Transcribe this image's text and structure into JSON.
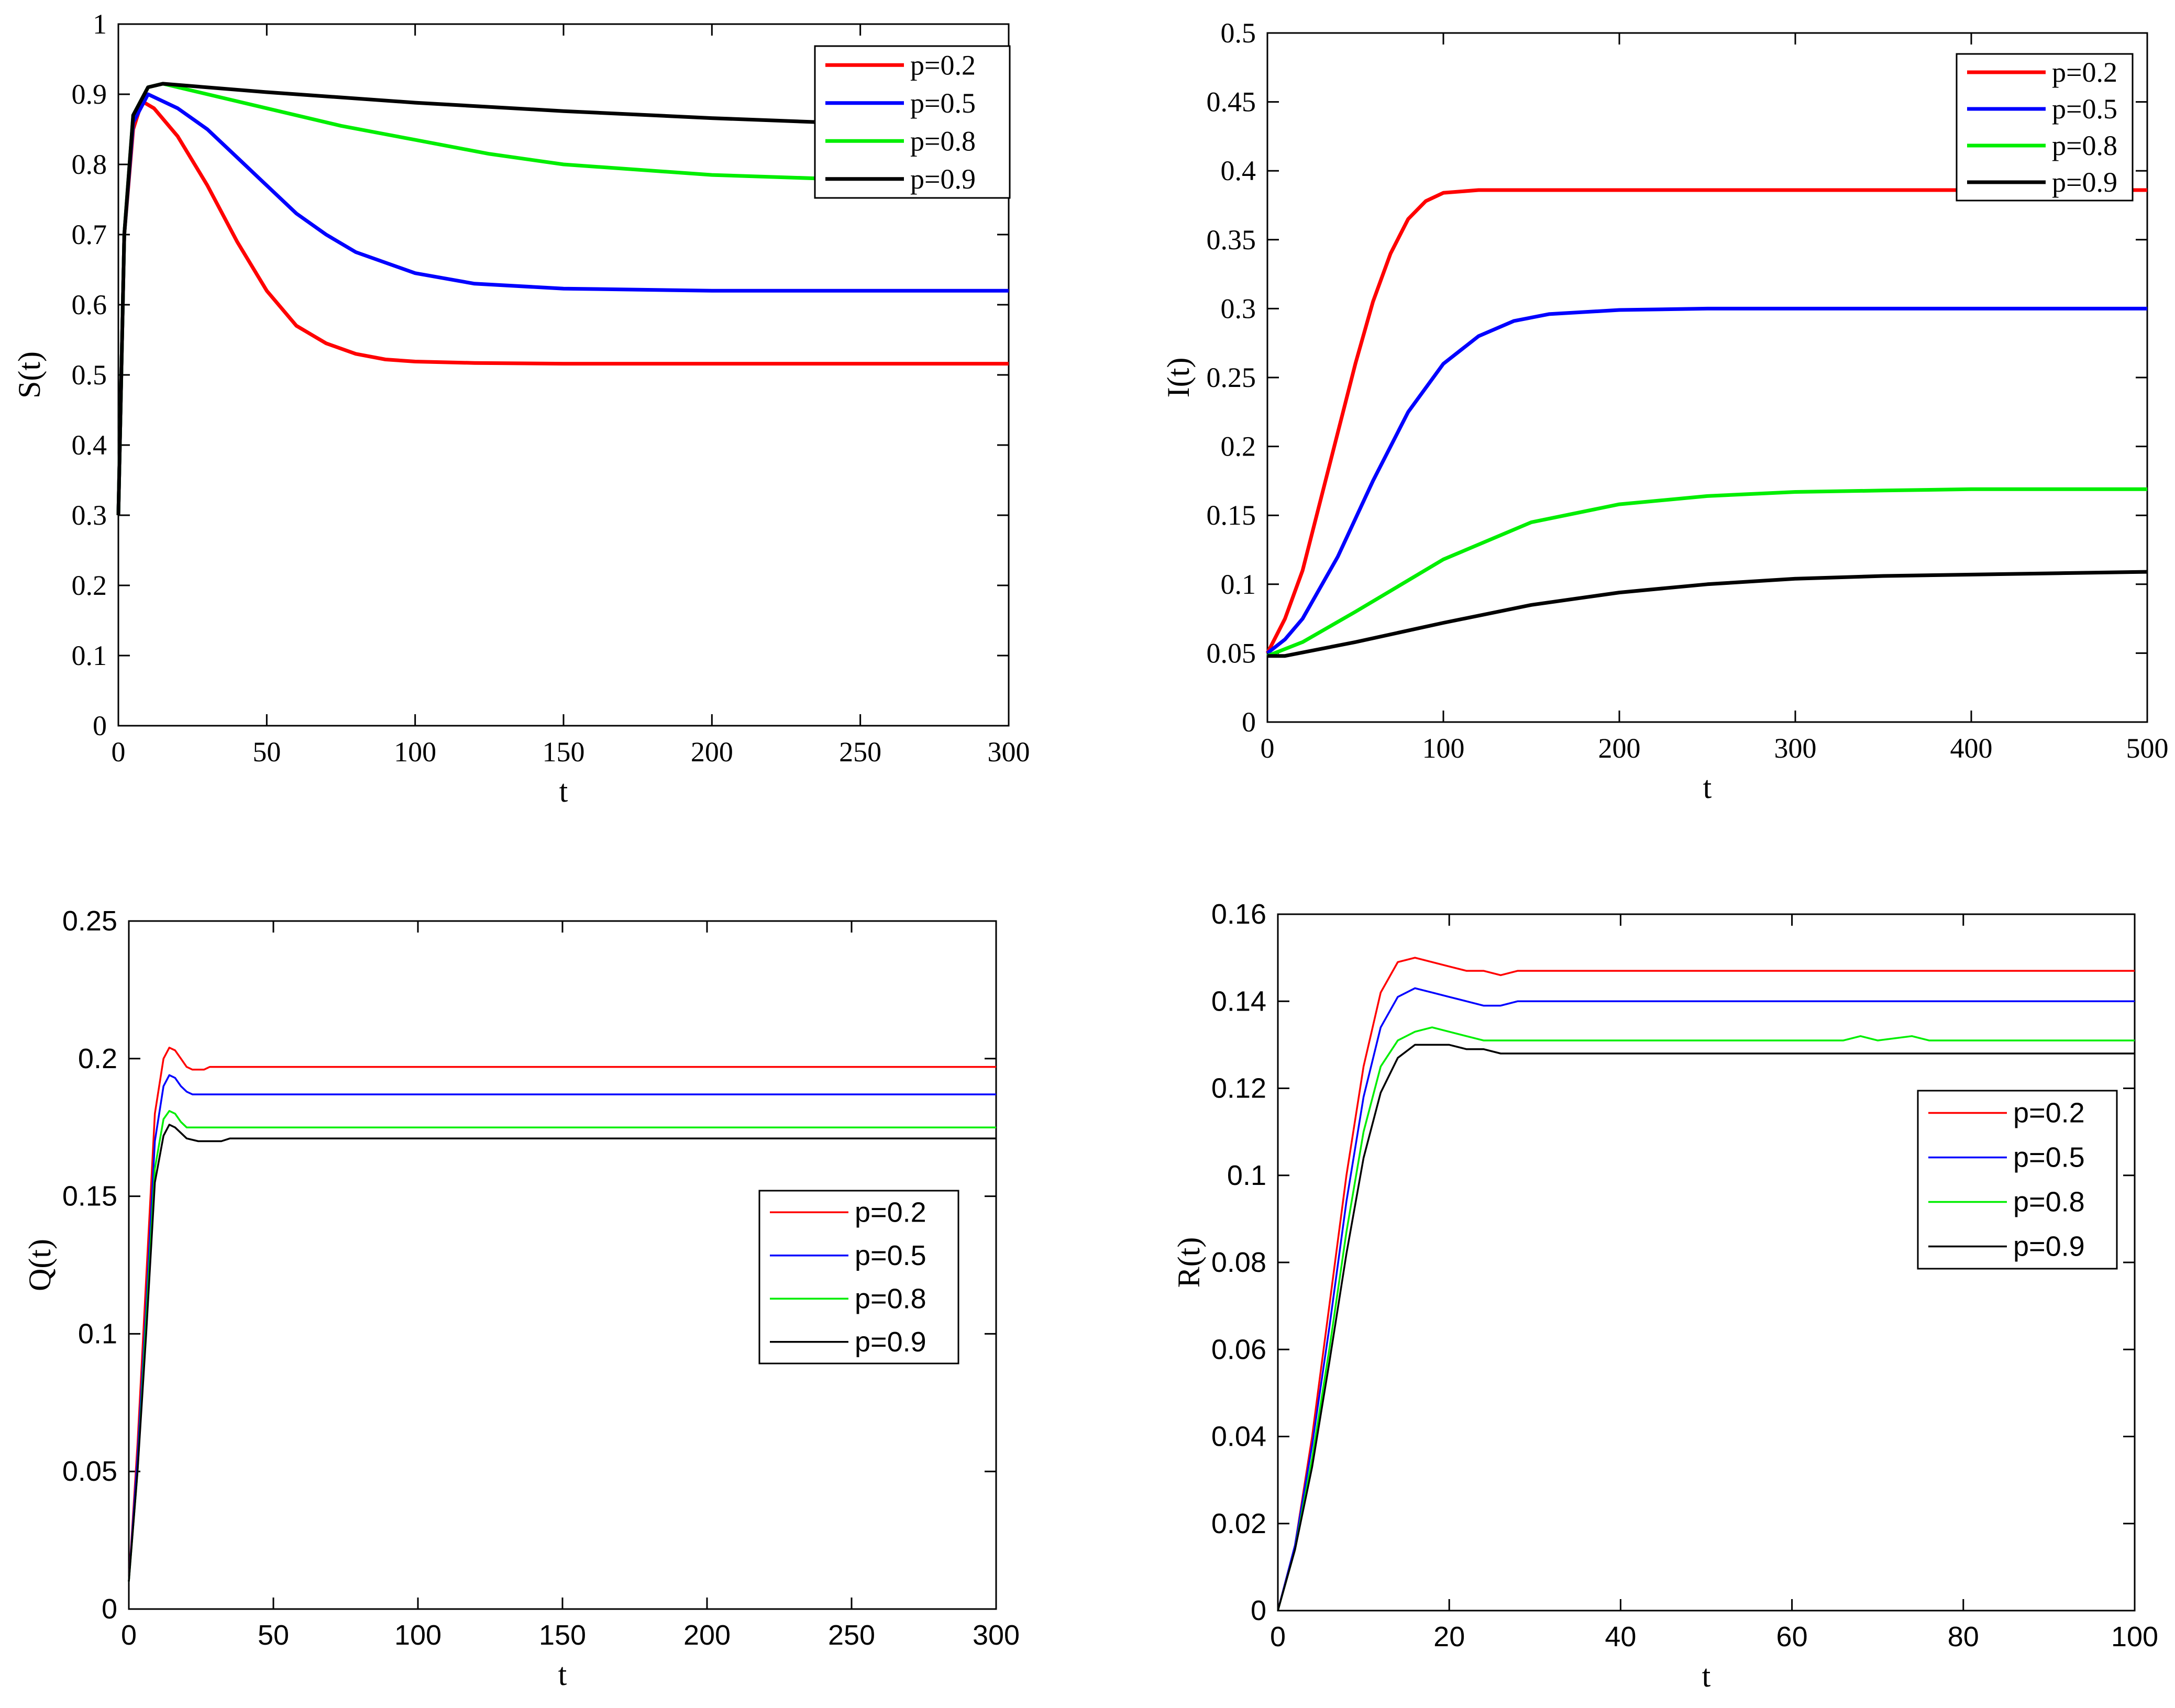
{
  "chart_data": [
    {
      "type": "line",
      "position": "top-left",
      "title": "",
      "xlabel": "t",
      "ylabel": "S(t)",
      "xlim": [
        0,
        300
      ],
      "ylim": [
        0,
        1
      ],
      "xticks": [
        0,
        50,
        100,
        150,
        200,
        250,
        300
      ],
      "yticks": [
        0,
        0.1,
        0.2,
        0.3,
        0.4,
        0.5,
        0.6,
        0.7,
        0.8,
        0.9,
        1
      ],
      "ytick_labels": [
        "0",
        "0.1",
        "0.2",
        "0.3",
        "0.4",
        "0.5",
        "0.6",
        "0.7",
        "0.8",
        "0.9",
        "1"
      ],
      "grid": false,
      "legend_position": "top-right",
      "series": [
        {
          "name": "p=0.2",
          "color": "#ff0000",
          "x": [
            0,
            2,
            5,
            8,
            12,
            20,
            30,
            40,
            50,
            60,
            70,
            80,
            90,
            100,
            120,
            150,
            200,
            300
          ],
          "y": [
            0.3,
            0.7,
            0.85,
            0.89,
            0.88,
            0.84,
            0.77,
            0.69,
            0.62,
            0.57,
            0.545,
            0.53,
            0.522,
            0.519,
            0.517,
            0.516,
            0.516,
            0.516
          ]
        },
        {
          "name": "p=0.5",
          "color": "#0000ff",
          "x": [
            0,
            2,
            5,
            10,
            20,
            30,
            40,
            50,
            60,
            70,
            80,
            100,
            120,
            150,
            200,
            300
          ],
          "y": [
            0.3,
            0.7,
            0.86,
            0.9,
            0.88,
            0.85,
            0.81,
            0.77,
            0.73,
            0.7,
            0.675,
            0.645,
            0.63,
            0.623,
            0.62,
            0.62
          ]
        },
        {
          "name": "p=0.8",
          "color": "#00ee00",
          "x": [
            0,
            2,
            5,
            10,
            15,
            30,
            50,
            75,
            100,
            125,
            150,
            200,
            250,
            300
          ],
          "y": [
            0.3,
            0.7,
            0.87,
            0.91,
            0.915,
            0.9,
            0.88,
            0.855,
            0.835,
            0.815,
            0.8,
            0.785,
            0.778,
            0.775
          ]
        },
        {
          "name": "p=0.9",
          "color": "#000000",
          "x": [
            0,
            2,
            5,
            10,
            15,
            50,
            100,
            150,
            200,
            250,
            300
          ],
          "y": [
            0.3,
            0.7,
            0.87,
            0.91,
            0.915,
            0.903,
            0.888,
            0.876,
            0.866,
            0.858,
            0.852
          ]
        }
      ]
    },
    {
      "type": "line",
      "position": "top-right",
      "title": "",
      "xlabel": "t",
      "ylabel": "I(t)",
      "xlim": [
        0,
        500
      ],
      "ylim": [
        0,
        0.5
      ],
      "xticks": [
        0,
        100,
        200,
        300,
        400,
        500
      ],
      "yticks": [
        0,
        0.05,
        0.1,
        0.15,
        0.2,
        0.25,
        0.3,
        0.35,
        0.4,
        0.45,
        0.5
      ],
      "ytick_labels": [
        "0",
        "0.05",
        "0.1",
        "0.15",
        "0.2",
        "0.25",
        "0.3",
        "0.35",
        "0.4",
        "0.45",
        "0.5"
      ],
      "grid": false,
      "legend_position": "top-right",
      "series": [
        {
          "name": "p=0.2",
          "color": "#ff0000",
          "x": [
            0,
            10,
            20,
            30,
            40,
            50,
            60,
            70,
            80,
            90,
            100,
            120,
            150,
            200,
            300,
            500
          ],
          "y": [
            0.05,
            0.075,
            0.11,
            0.16,
            0.21,
            0.26,
            0.305,
            0.34,
            0.365,
            0.378,
            0.384,
            0.386,
            0.386,
            0.386,
            0.386,
            0.386
          ]
        },
        {
          "name": "p=0.5",
          "color": "#0000ff",
          "x": [
            0,
            10,
            20,
            40,
            60,
            80,
            100,
            120,
            140,
            160,
            200,
            250,
            300,
            500
          ],
          "y": [
            0.05,
            0.06,
            0.075,
            0.12,
            0.175,
            0.225,
            0.26,
            0.28,
            0.291,
            0.296,
            0.299,
            0.3,
            0.3,
            0.3
          ]
        },
        {
          "name": "p=0.8",
          "color": "#00ee00",
          "x": [
            0,
            20,
            50,
            100,
            150,
            200,
            250,
            300,
            350,
            400,
            500
          ],
          "y": [
            0.048,
            0.058,
            0.08,
            0.118,
            0.145,
            0.158,
            0.164,
            0.167,
            0.168,
            0.169,
            0.169
          ]
        },
        {
          "name": "p=0.9",
          "color": "#000000",
          "x": [
            0,
            10,
            50,
            100,
            150,
            200,
            250,
            300,
            350,
            400,
            450,
            500
          ],
          "y": [
            0.048,
            0.048,
            0.058,
            0.072,
            0.085,
            0.094,
            0.1,
            0.104,
            0.106,
            0.107,
            0.108,
            0.109
          ]
        }
      ]
    },
    {
      "type": "line",
      "position": "bottom-left",
      "title": "",
      "xlabel": "t",
      "ylabel": "Q(t)",
      "xlim": [
        0,
        300
      ],
      "ylim": [
        0,
        0.25
      ],
      "xticks": [
        0,
        50,
        100,
        150,
        200,
        250,
        300
      ],
      "yticks": [
        0,
        0.05,
        0.1,
        0.15,
        0.2,
        0.25
      ],
      "ytick_labels": [
        "0",
        "0.05",
        "0.1",
        "0.15",
        "0.2",
        "0.25"
      ],
      "grid": false,
      "legend_position": "center-right",
      "series": [
        {
          "name": "p=0.2",
          "color": "#ff0000",
          "x": [
            0,
            3,
            6,
            9,
            12,
            14,
            16,
            18,
            20,
            22,
            24,
            26,
            28,
            30,
            300
          ],
          "y": [
            0.01,
            0.06,
            0.12,
            0.18,
            0.2,
            0.204,
            0.203,
            0.2,
            0.197,
            0.196,
            0.196,
            0.196,
            0.197,
            0.197,
            0.197
          ]
        },
        {
          "name": "p=0.5",
          "color": "#0000ff",
          "x": [
            0,
            3,
            6,
            9,
            12,
            14,
            16,
            18,
            20,
            22,
            25,
            28,
            30,
            300
          ],
          "y": [
            0.01,
            0.055,
            0.11,
            0.17,
            0.19,
            0.194,
            0.193,
            0.19,
            0.188,
            0.187,
            0.187,
            0.187,
            0.187,
            0.187
          ]
        },
        {
          "name": "p=0.8",
          "color": "#00ee00",
          "x": [
            0,
            3,
            6,
            9,
            12,
            14,
            16,
            18,
            20,
            22,
            25,
            28,
            300
          ],
          "y": [
            0.01,
            0.05,
            0.105,
            0.16,
            0.178,
            0.181,
            0.18,
            0.177,
            0.175,
            0.175,
            0.175,
            0.175,
            0.175
          ]
        },
        {
          "name": "p=0.9",
          "color": "#000000",
          "x": [
            0,
            3,
            6,
            9,
            12,
            14,
            16,
            18,
            20,
            24,
            28,
            32,
            35,
            300
          ],
          "y": [
            0.01,
            0.05,
            0.1,
            0.155,
            0.172,
            0.176,
            0.175,
            0.173,
            0.171,
            0.17,
            0.17,
            0.17,
            0.171,
            0.171
          ]
        }
      ]
    },
    {
      "type": "line",
      "position": "bottom-right",
      "title": "",
      "xlabel": "t",
      "ylabel": "R(t)",
      "xlim": [
        0,
        100
      ],
      "ylim": [
        0,
        0.16
      ],
      "xticks": [
        0,
        20,
        40,
        60,
        80,
        100
      ],
      "yticks": [
        0,
        0.02,
        0.04,
        0.06,
        0.08,
        0.1,
        0.12,
        0.14,
        0.16
      ],
      "ytick_labels": [
        "0",
        "0.02",
        "0.04",
        "0.06",
        "0.08",
        "0.1",
        "0.12",
        "0.14",
        "0.16"
      ],
      "grid": false,
      "legend_position": "center-right",
      "series": [
        {
          "name": "p=0.2",
          "color": "#ff0000",
          "x": [
            0,
            2,
            4,
            6,
            8,
            10,
            12,
            14,
            16,
            18,
            20,
            22,
            24,
            26,
            28,
            100
          ],
          "y": [
            0.0,
            0.015,
            0.04,
            0.07,
            0.1,
            0.125,
            0.142,
            0.149,
            0.15,
            0.149,
            0.148,
            0.147,
            0.147,
            0.146,
            0.147,
            0.147
          ]
        },
        {
          "name": "p=0.5",
          "color": "#0000ff",
          "x": [
            0,
            2,
            4,
            6,
            8,
            10,
            12,
            14,
            16,
            18,
            20,
            22,
            24,
            26,
            28,
            100
          ],
          "y": [
            0.0,
            0.015,
            0.038,
            0.065,
            0.094,
            0.118,
            0.134,
            0.141,
            0.143,
            0.142,
            0.141,
            0.14,
            0.139,
            0.139,
            0.14,
            0.14
          ]
        },
        {
          "name": "p=0.8",
          "color": "#00ee00",
          "x": [
            0,
            2,
            4,
            6,
            8,
            10,
            12,
            14,
            16,
            18,
            20,
            22,
            24,
            26,
            28,
            66,
            68,
            70,
            74,
            76,
            100
          ],
          "y": [
            0.0,
            0.014,
            0.035,
            0.06,
            0.087,
            0.11,
            0.125,
            0.131,
            0.133,
            0.134,
            0.133,
            0.132,
            0.131,
            0.131,
            0.131,
            0.131,
            0.132,
            0.131,
            0.132,
            0.131,
            0.131
          ]
        },
        {
          "name": "p=0.9",
          "color": "#000000",
          "x": [
            0,
            2,
            4,
            6,
            8,
            10,
            12,
            14,
            16,
            18,
            20,
            22,
            24,
            26,
            28,
            100
          ],
          "y": [
            0.0,
            0.014,
            0.033,
            0.057,
            0.082,
            0.104,
            0.119,
            0.127,
            0.13,
            0.13,
            0.13,
            0.129,
            0.129,
            0.128,
            0.128,
            0.128
          ]
        }
      ]
    }
  ]
}
